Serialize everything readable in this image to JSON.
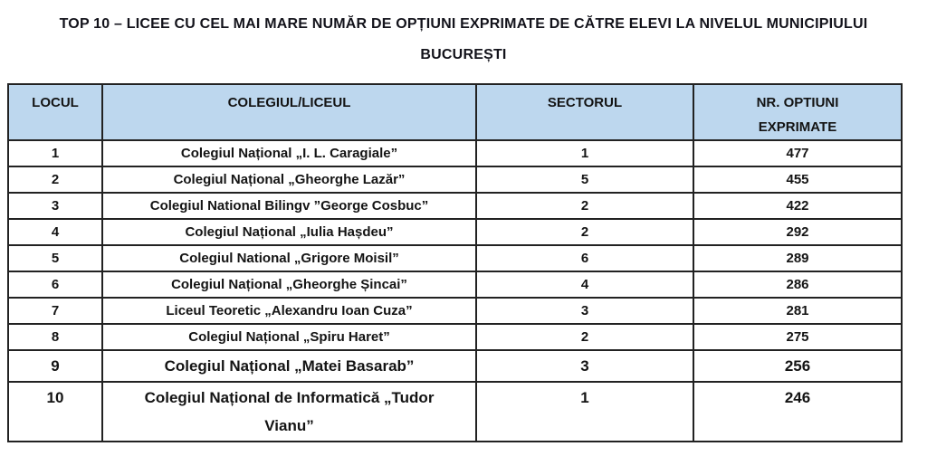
{
  "title": "TOP 10 – LICEE CU CEL MAI MARE NUMĂR DE OPȚIUNI EXPRIMATE DE CĂTRE ELEVI LA NIVELUL MUNICIPIULUI BUCUREȘTI",
  "table": {
    "headers": [
      "LOCUL",
      "COLEGIUL/LICEUL",
      "SECTORUL",
      "NR. OPTIUNI EXPRIMATE"
    ],
    "rows": [
      {
        "rank": "1",
        "school": "Colegiul Național „I. L. Caragiale”",
        "sector": "1",
        "options": "477"
      },
      {
        "rank": "2",
        "school": "Colegiul Național „Gheorghe Lazăr”",
        "sector": "5",
        "options": "455"
      },
      {
        "rank": "3",
        "school": "Colegiul National Bilingv ”George Cosbuc”",
        "sector": "2",
        "options": "422"
      },
      {
        "rank": "4",
        "school": "Colegiul Național „Iulia Hașdeu”",
        "sector": "2",
        "options": "292"
      },
      {
        "rank": "5",
        "school": "Colegiul National „Grigore Moisil”",
        "sector": "6",
        "options": "289"
      },
      {
        "rank": "6",
        "school": "Colegiul Național „Gheorghe Șincai”",
        "sector": "4",
        "options": "286"
      },
      {
        "rank": "7",
        "school": "Liceul Teoretic „Alexandru Ioan Cuza”",
        "sector": "3",
        "options": "281"
      },
      {
        "rank": "8",
        "school": "Colegiul Național „Spiru Haret”",
        "sector": "2",
        "options": "275"
      },
      {
        "rank": "9",
        "school": "Colegiul Național „Matei Basarab”",
        "sector": "3",
        "options": "256"
      },
      {
        "rank": "10",
        "school": "Colegiul Național de Informatică „Tudor Vianu”",
        "sector": "1",
        "options": "246"
      }
    ]
  },
  "colors": {
    "header_bg": "#BDD7EE",
    "border": "#222222",
    "text": "#141414"
  }
}
